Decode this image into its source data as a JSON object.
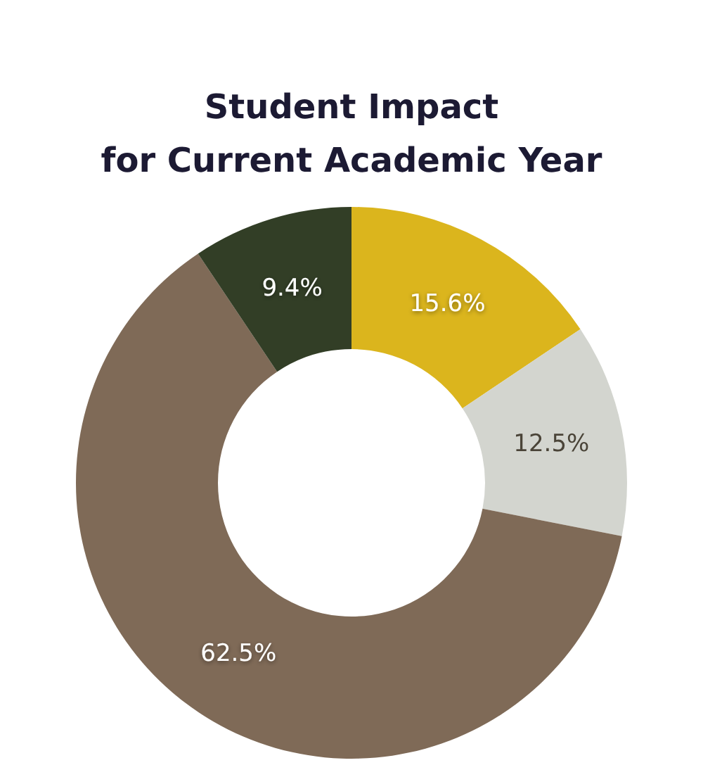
{
  "chart_data": {
    "type": "donut",
    "title": "Student Impact\nfor Current Academic Year",
    "categories": [
      null,
      null,
      null,
      null
    ],
    "values": [
      15.6,
      12.5,
      62.5,
      9.4
    ],
    "colors": [
      "#dbb51d",
      "#d3d5cf",
      "#7f6a57",
      "#323e26"
    ],
    "value_labels": [
      "15.6%",
      "12.5%",
      "62.5%",
      "9.4%"
    ]
  }
}
